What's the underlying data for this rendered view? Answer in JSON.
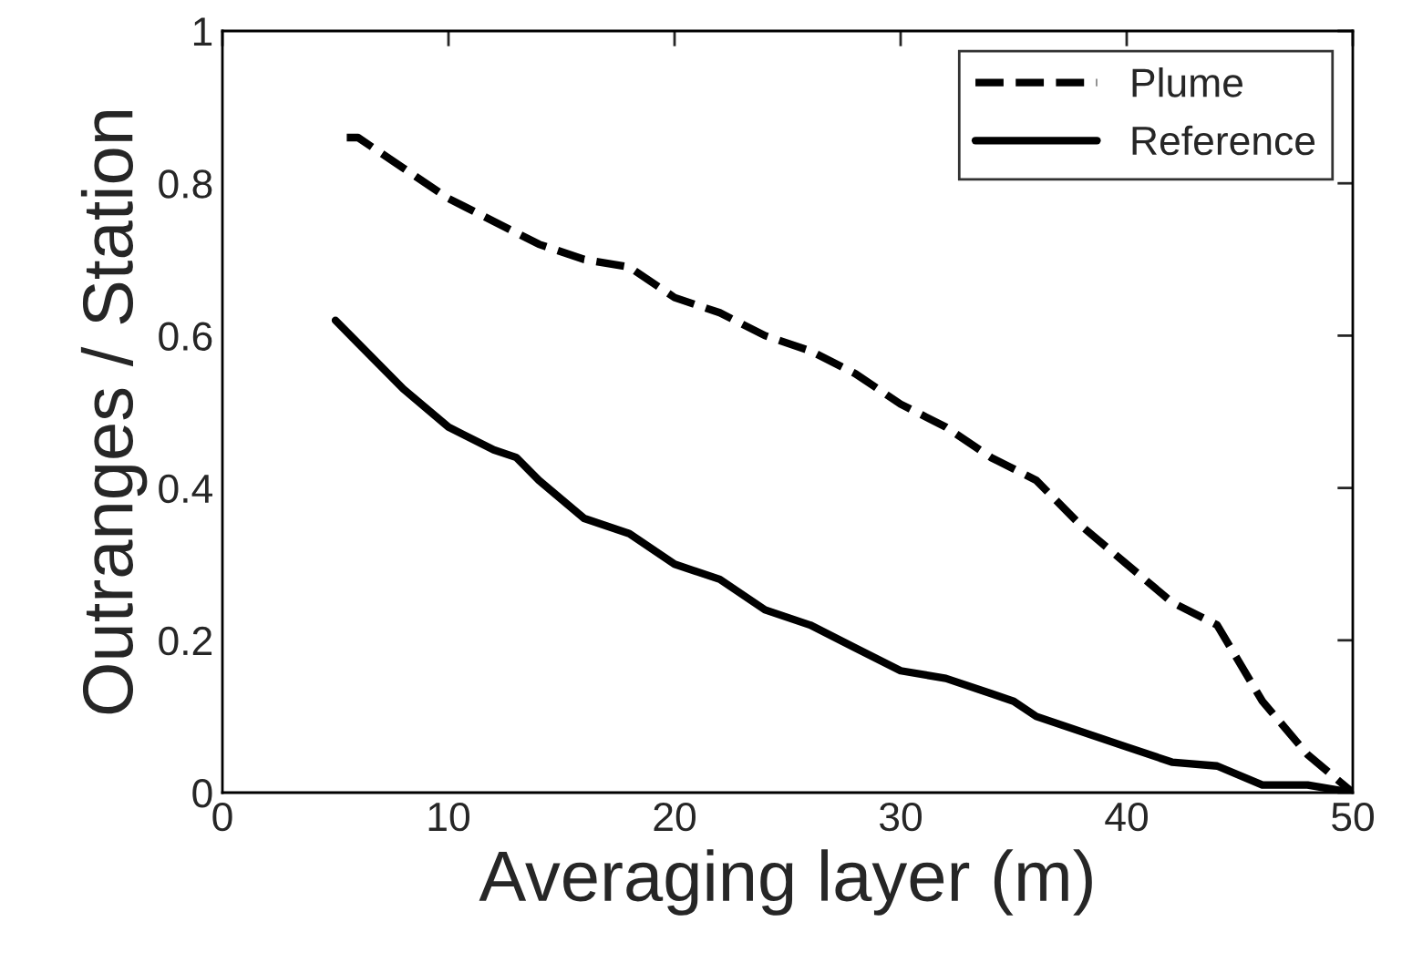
{
  "chart_data": {
    "type": "line",
    "xlabel": "Averaging layer (m)",
    "ylabel": "Outranges / Station",
    "xlim": [
      0,
      50
    ],
    "ylim": [
      0,
      1
    ],
    "xticks": [
      0,
      10,
      20,
      30,
      40,
      50
    ],
    "yticks": [
      0,
      {
        "value": 0.2,
        "label": "0.2"
      },
      {
        "value": 0.4,
        "label": "0.4"
      },
      {
        "value": 0.6,
        "label": "0.6"
      },
      {
        "value": 0.8,
        "label": "0.8"
      },
      1
    ],
    "grid": false,
    "legend": "top right",
    "marker": "none",
    "series": [
      {
        "name": "Plume",
        "color": "#000000",
        "line_style": "dashed",
        "x": [
          5.5,
          6,
          8,
          10,
          12,
          14,
          16,
          18,
          20,
          22,
          24,
          26,
          28,
          30,
          32,
          34,
          36,
          38,
          40,
          42,
          44,
          46,
          48,
          50
        ],
        "values": [
          0.86,
          0.86,
          0.82,
          0.78,
          0.75,
          0.72,
          0.7,
          0.69,
          0.65,
          0.63,
          0.6,
          0.58,
          0.55,
          0.51,
          0.48,
          0.44,
          0.41,
          0.35,
          0.3,
          0.25,
          0.22,
          0.12,
          0.05,
          0.0
        ]
      },
      {
        "name": "Reference",
        "color": "#000000",
        "line_style": "solid",
        "x": [
          5,
          6,
          8,
          10,
          12,
          13,
          14,
          16,
          18,
          20,
          22,
          24,
          26,
          28,
          30,
          32,
          34,
          35,
          36,
          38,
          40,
          42,
          44,
          46,
          48,
          50
        ],
        "values": [
          0.62,
          0.59,
          0.53,
          0.48,
          0.45,
          0.44,
          0.41,
          0.36,
          0.34,
          0.3,
          0.28,
          0.24,
          0.22,
          0.19,
          0.16,
          0.15,
          0.13,
          0.12,
          0.1,
          0.08,
          0.06,
          0.04,
          0.035,
          0.01,
          0.01,
          0.0
        ]
      }
    ]
  }
}
